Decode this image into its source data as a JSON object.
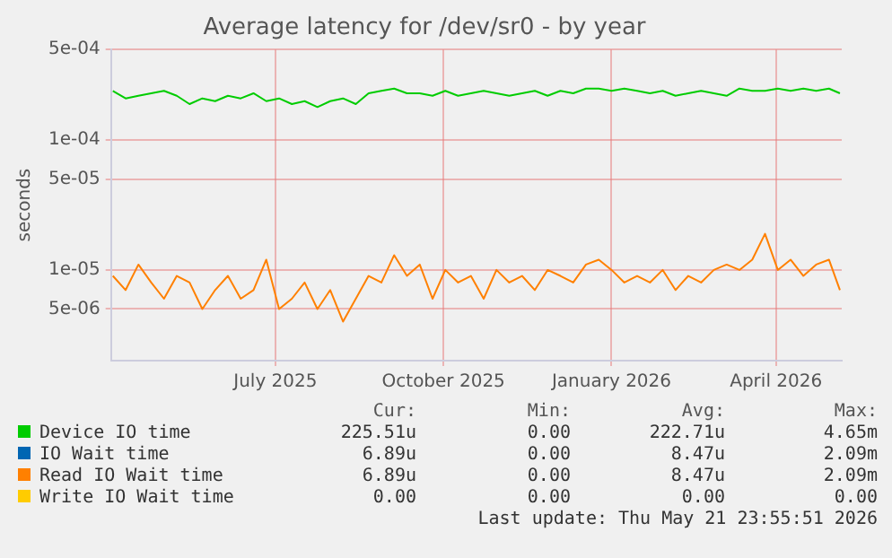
{
  "chart_data": {
    "type": "line",
    "title": "Average latency for /dev/sr0 - by year",
    "ylabel": "seconds",
    "x": [
      "2025-04-18",
      "2025-04-25",
      "2025-05-02",
      "2025-05-09",
      "2025-05-16",
      "2025-05-23",
      "2025-05-30",
      "2025-06-06",
      "2025-06-13",
      "2025-06-20",
      "2025-06-27",
      "2025-07-04",
      "2025-07-11",
      "2025-07-18",
      "2025-07-25",
      "2025-08-01",
      "2025-08-08",
      "2025-08-15",
      "2025-08-22",
      "2025-08-29",
      "2025-09-05",
      "2025-09-12",
      "2025-09-19",
      "2025-09-26",
      "2025-10-03",
      "2025-10-10",
      "2025-10-17",
      "2025-10-24",
      "2025-10-31",
      "2025-11-07",
      "2025-11-14",
      "2025-11-21",
      "2025-11-28",
      "2025-12-05",
      "2025-12-12",
      "2025-12-19",
      "2025-12-26",
      "2026-01-02",
      "2026-01-09",
      "2026-01-16",
      "2026-01-23",
      "2026-01-30",
      "2026-02-06",
      "2026-02-13",
      "2026-02-20",
      "2026-02-27",
      "2026-03-06",
      "2026-03-13",
      "2026-03-20",
      "2026-03-27",
      "2026-04-03",
      "2026-04-10",
      "2026-04-17",
      "2026-04-24",
      "2026-05-01",
      "2026-05-08",
      "2026-05-15",
      "2026-05-21"
    ],
    "series": [
      {
        "name": "Device IO time",
        "color": "#00cc00",
        "values": [
          0.00024,
          0.00021,
          0.00022,
          0.00023,
          0.00024,
          0.00022,
          0.00019,
          0.00021,
          0.0002,
          0.00022,
          0.00021,
          0.00023,
          0.0002,
          0.00021,
          0.00019,
          0.0002,
          0.00018,
          0.0002,
          0.00021,
          0.00019,
          0.00023,
          0.00024,
          0.00025,
          0.00023,
          0.00023,
          0.00022,
          0.00024,
          0.00022,
          0.00023,
          0.00024,
          0.00023,
          0.00022,
          0.00023,
          0.00024,
          0.00022,
          0.00024,
          0.00023,
          0.00025,
          0.00025,
          0.00024,
          0.00025,
          0.00024,
          0.00023,
          0.00024,
          0.00022,
          0.00023,
          0.00024,
          0.00023,
          0.00022,
          0.00025,
          0.00024,
          0.00024,
          0.00025,
          0.00024,
          0.00025,
          0.00024,
          0.00025,
          0.00023
        ]
      },
      {
        "name": "IO Wait time",
        "color": "#0066b3",
        "values": [
          null,
          null,
          null,
          null,
          null,
          null,
          null,
          null,
          null,
          null,
          null,
          null,
          null,
          null,
          null,
          null,
          null,
          null,
          null,
          null,
          null,
          null,
          null,
          null,
          null,
          null,
          null,
          null,
          null,
          null,
          null,
          null,
          null,
          null,
          null,
          null,
          null,
          null,
          null,
          null,
          null,
          null,
          null,
          null,
          null,
          null,
          null,
          null,
          null,
          null,
          null,
          null,
          null,
          null,
          null,
          null,
          null,
          null
        ]
      },
      {
        "name": "Read IO Wait time",
        "color": "#ff8000",
        "values": [
          9e-06,
          7e-06,
          1.1e-05,
          8e-06,
          6e-06,
          9e-06,
          8e-06,
          5e-06,
          7e-06,
          9e-06,
          6e-06,
          7e-06,
          1.2e-05,
          5e-06,
          6e-06,
          8e-06,
          5e-06,
          7e-06,
          4e-06,
          6e-06,
          9e-06,
          8e-06,
          1.3e-05,
          9e-06,
          1.1e-05,
          6e-06,
          1e-05,
          8e-06,
          9e-06,
          6e-06,
          1e-05,
          8e-06,
          9e-06,
          7e-06,
          1e-05,
          9e-06,
          8e-06,
          1.1e-05,
          1.2e-05,
          1e-05,
          8e-06,
          9e-06,
          8e-06,
          1e-05,
          7e-06,
          9e-06,
          8e-06,
          1e-05,
          1.1e-05,
          1e-05,
          1.2e-05,
          1.9e-05,
          1e-05,
          1.2e-05,
          9e-06,
          1.1e-05,
          1.2e-05,
          7e-06
        ]
      },
      {
        "name": "Write IO Wait time",
        "color": "#ffcc00",
        "values": [
          null,
          null,
          null,
          null,
          null,
          null,
          null,
          null,
          null,
          null,
          null,
          null,
          null,
          null,
          null,
          null,
          null,
          null,
          null,
          null,
          null,
          null,
          null,
          null,
          null,
          null,
          null,
          null,
          null,
          null,
          null,
          null,
          null,
          null,
          null,
          null,
          null,
          null,
          null,
          null,
          null,
          null,
          null,
          null,
          null,
          null,
          null,
          null,
          null,
          null,
          null,
          null,
          null,
          null,
          null,
          null,
          null,
          null
        ]
      }
    ],
    "xlim": [
      "2025-04-17",
      "2026-05-22"
    ],
    "xticks": [
      {
        "value": "2025-07-16",
        "label": "July 2025"
      },
      {
        "value": "2025-10-16",
        "label": "October 2025"
      },
      {
        "value": "2026-01-16",
        "label": "January 2026"
      },
      {
        "value": "2026-04-16",
        "label": "April 2026"
      }
    ],
    "ylim": [
      2e-06,
      0.0005
    ],
    "yticks": [
      {
        "value": 0.0005,
        "label": "5e-04"
      },
      {
        "value": 0.0001,
        "label": "1e-04"
      },
      {
        "value": 5e-05,
        "label": "5e-05"
      },
      {
        "value": 1e-05,
        "label": "1e-05"
      },
      {
        "value": 5e-06,
        "label": "5e-06"
      }
    ],
    "log": "y",
    "grid": true,
    "legend": "bottom",
    "marker": "none",
    "line_style": "solid",
    "annotations": [
      "Cur:",
      "Min:",
      "Avg:",
      "Max:",
      "225.51u",
      "0.00",
      "222.71u",
      "4.65m",
      "6.89u",
      "0.00",
      "8.47u",
      "2.09m",
      "6.89u",
      "0.00",
      "8.47u",
      "2.09m",
      "0.00",
      "0.00",
      "0.00",
      "0.00",
      "Last update: Thu May 21 23:55:51 2026"
    ]
  }
}
